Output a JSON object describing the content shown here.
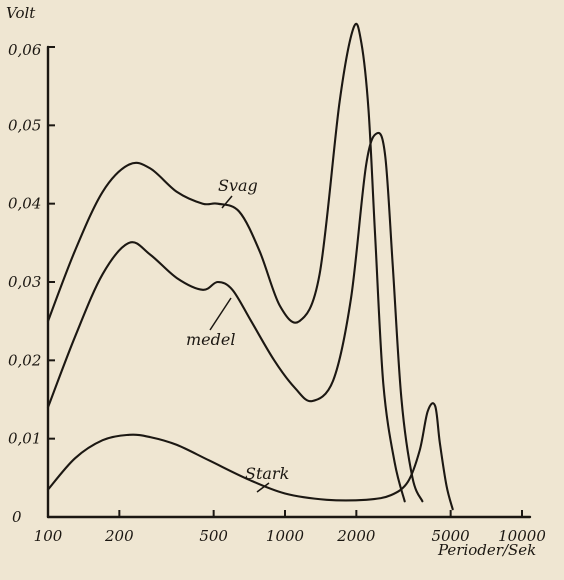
{
  "chart_data": {
    "type": "line",
    "title": "",
    "xlabel": "Perioder/Sek",
    "ylabel": "Volt",
    "xscale": "log",
    "xlim": [
      100,
      10000
    ],
    "ylim": [
      0,
      0.06
    ],
    "x_ticks": [
      {
        "value": 100,
        "label": "100"
      },
      {
        "value": 200,
        "label": "200"
      },
      {
        "value": 500,
        "label": "500"
      },
      {
        "value": 1000,
        "label": "1000"
      },
      {
        "value": 2000,
        "label": "2000"
      },
      {
        "value": 5000,
        "label": "5000"
      },
      {
        "value": 10000,
        "label": "10000"
      }
    ],
    "y_ticks": [
      {
        "value": 0,
        "label": "0"
      },
      {
        "value": 0.01,
        "label": "0,01"
      },
      {
        "value": 0.02,
        "label": "0,02"
      },
      {
        "value": 0.03,
        "label": "0,03"
      },
      {
        "value": 0.04,
        "label": "0,04"
      },
      {
        "value": 0.05,
        "label": "0,05"
      },
      {
        "value": 0.06,
        "label": "0,06"
      }
    ],
    "grid": false,
    "legend": "none",
    "series": [
      {
        "name": "Svag",
        "x": [
          100,
          130,
          170,
          220,
          270,
          350,
          450,
          520,
          640,
          780,
          950,
          1150,
          1400,
          1700,
          1950,
          2100,
          2250,
          2400,
          2600,
          2900,
          3200
        ],
        "y": [
          0.025,
          0.034,
          0.0415,
          0.045,
          0.0445,
          0.0415,
          0.04,
          0.04,
          0.039,
          0.034,
          0.027,
          0.025,
          0.031,
          0.053,
          0.0625,
          0.0605,
          0.052,
          0.036,
          0.017,
          0.007,
          0.002
        ]
      },
      {
        "name": "medel",
        "x": [
          100,
          130,
          170,
          220,
          270,
          350,
          450,
          520,
          600,
          720,
          900,
          1100,
          1300,
          1600,
          1900,
          2200,
          2450,
          2650,
          2850,
          3100,
          3450,
          3800
        ],
        "y": [
          0.014,
          0.023,
          0.031,
          0.035,
          0.0335,
          0.0305,
          0.029,
          0.03,
          0.029,
          0.025,
          0.02,
          0.0165,
          0.0148,
          0.0175,
          0.028,
          0.045,
          0.049,
          0.046,
          0.032,
          0.015,
          0.005,
          0.002
        ]
      },
      {
        "name": "Stark",
        "x": [
          100,
          130,
          170,
          220,
          270,
          350,
          480,
          700,
          1000,
          1500,
          2200,
          2800,
          3300,
          3700,
          4000,
          4300,
          4500,
          4800,
          5100
        ],
        "y": [
          0.0035,
          0.0075,
          0.0098,
          0.0105,
          0.0102,
          0.0092,
          0.0072,
          0.0048,
          0.003,
          0.0022,
          0.0022,
          0.0028,
          0.0045,
          0.0085,
          0.0135,
          0.0142,
          0.0095,
          0.004,
          0.001
        ]
      }
    ]
  }
}
